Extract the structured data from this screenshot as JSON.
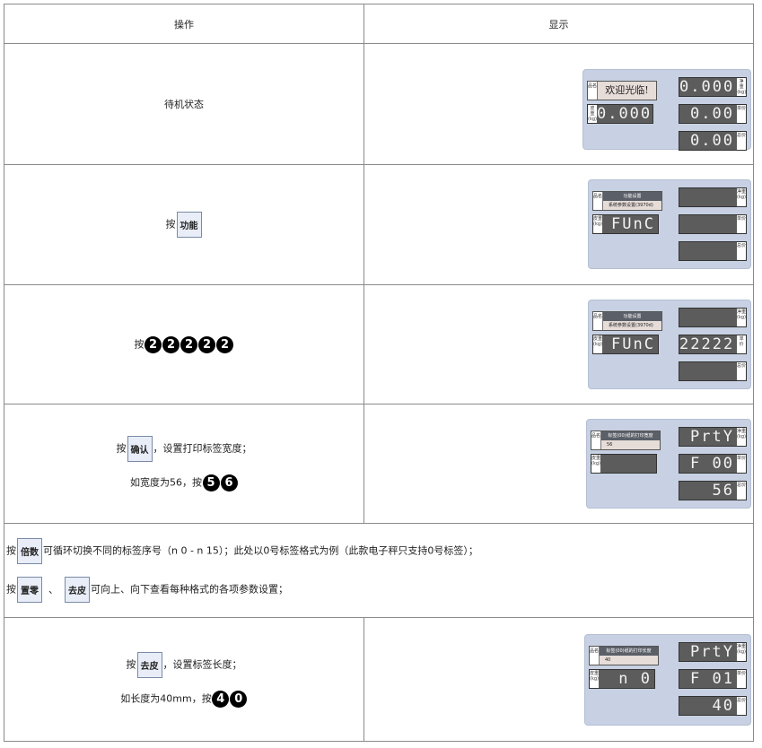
{
  "header": {
    "op": "操作",
    "display": "显示"
  },
  "labels": {
    "press": "按",
    "name_tag": "品名",
    "tare_tag": "皮重(kg)",
    "net_tag": "净重(kg)",
    "price_tag": "单价",
    "total_tag": "总价"
  },
  "rows": [
    {
      "op": "待机状态",
      "panel": {
        "name_big": "欢迎光临!",
        "tare": "0.000",
        "net": "0.000",
        "price": "0.00",
        "total": "0.00"
      }
    },
    {
      "key": "功能",
      "panel": {
        "name_top": "功能设置",
        "name_bottom": "系统参数设置(3970d)",
        "tare": "FUnC",
        "net": "",
        "price": "",
        "total": ""
      }
    },
    {
      "keys": [
        "2",
        "2",
        "2",
        "2",
        "2"
      ],
      "panel": {
        "name_top": "功能设置",
        "name_bottom": "系统参数设置(3970d)",
        "tare": "FUnC",
        "net": "",
        "price": "22222",
        "total": ""
      }
    },
    {
      "key": "确认",
      "text1": "，设置打印标签宽度；",
      "text2": "如宽度为56，按",
      "keys": [
        "5",
        "6"
      ],
      "panel": {
        "name_top": "标签(00)纸的打印宽度",
        "name_bottom": "56",
        "tare": "",
        "net": "PrtY",
        "price": "F  00",
        "total": "56"
      }
    },
    {
      "line1": {
        "key": "倍数",
        "text": "可循环切换不同的标签序号（n 0 - n 15）；此处以0号标签格式为例（此款电子秤只支持0号标签）；"
      },
      "line2": {
        "key1": "置零",
        "sep": "、",
        "key2": "去皮",
        "text": "可向上、向下查看每种格式的各项参数设置；"
      }
    },
    {
      "key": "去皮",
      "text1": "，设置标签长度；",
      "text2": "如长度为40mm，按",
      "keys": [
        "4",
        "0"
      ],
      "panel": {
        "name_top": "标签(00)纸的打印长度",
        "name_bottom": "40",
        "tare": "n   0",
        "net": "PrtY",
        "price": "F  01",
        "total": "40"
      }
    }
  ],
  "colors": {
    "panel": "#c7d1e3",
    "segment": "#5c5c5c"
  }
}
